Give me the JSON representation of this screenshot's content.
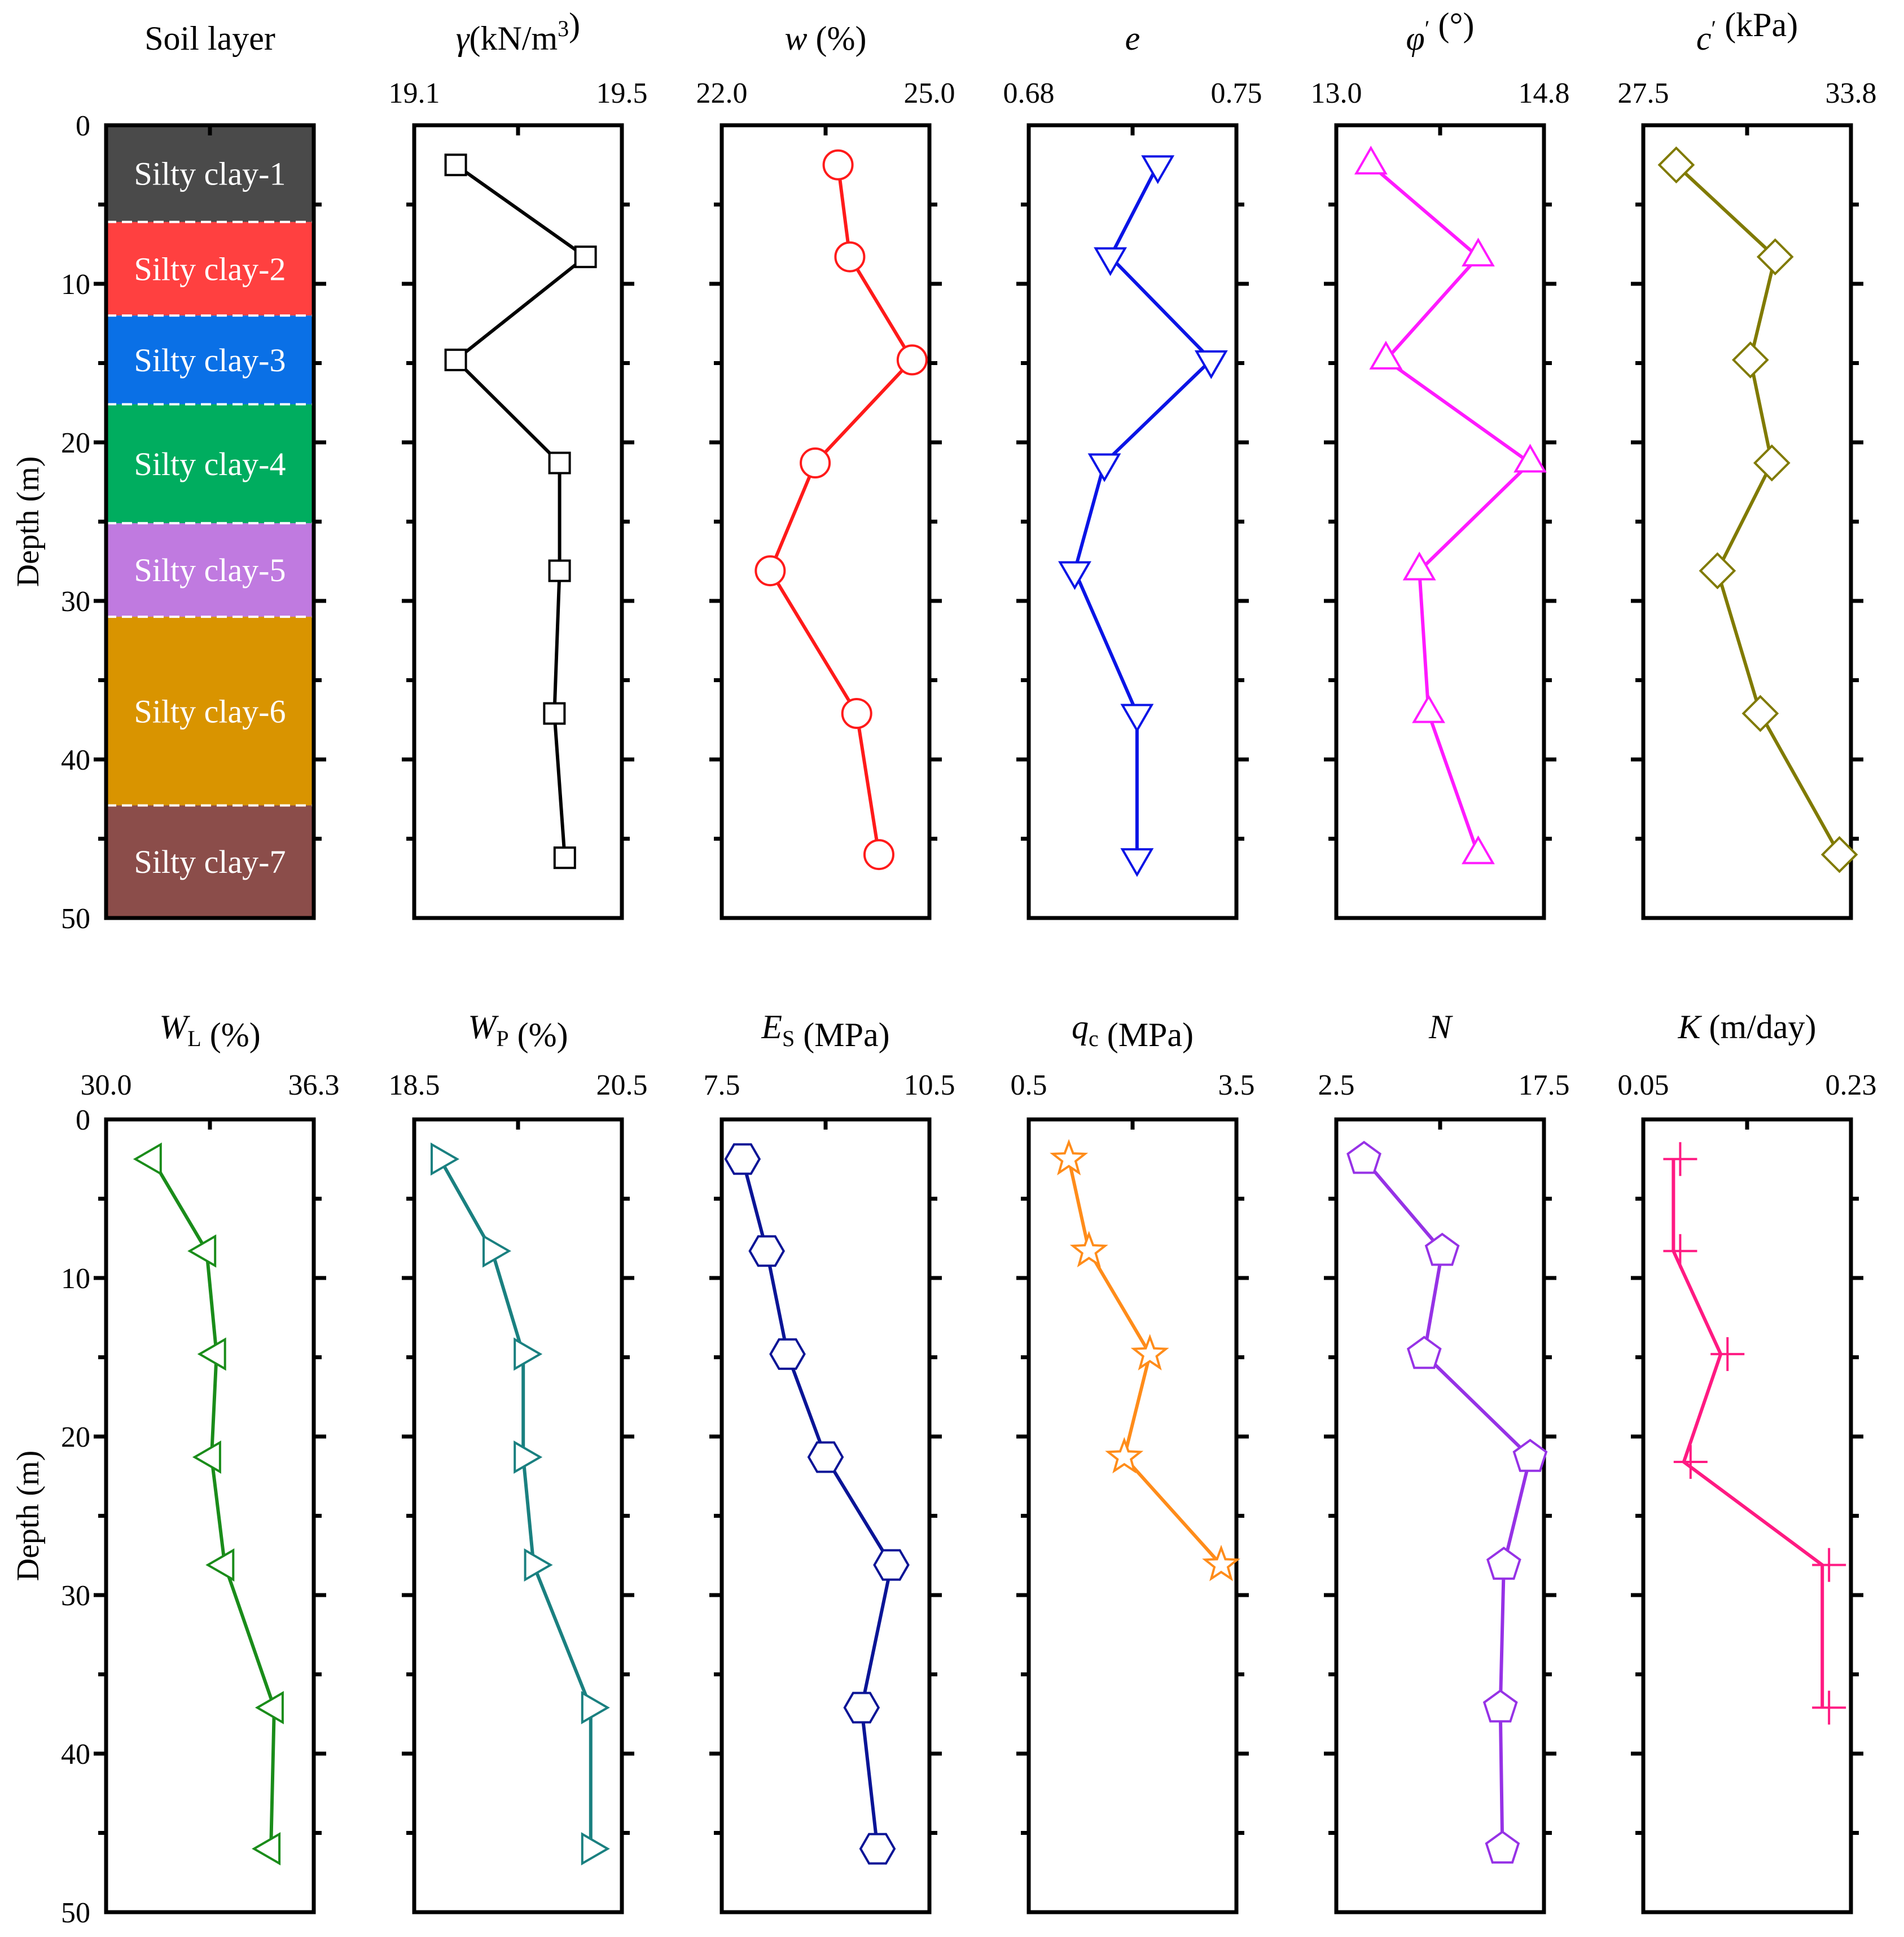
{
  "chart_data": {
    "type": "line",
    "layout": "two rows of depth-profile panels sharing a depth axis",
    "depth_axis": {
      "label": "Depth (m)",
      "range": [
        0,
        50
      ],
      "ticks": [
        0,
        10,
        20,
        30,
        40,
        50
      ],
      "inverted": true
    },
    "soil_column": {
      "title": "Soil layer",
      "layers": [
        {
          "name": "Silty clay-1",
          "top": 0,
          "bottom": 6.1,
          "color": "#4a4a4a"
        },
        {
          "name": "Silty clay-2",
          "top": 6.1,
          "bottom": 12.0,
          "color": "#ff4040"
        },
        {
          "name": "Silty clay-3",
          "top": 12.0,
          "bottom": 17.6,
          "color": "#0a70e6"
        },
        {
          "name": "Silty clay-4",
          "top": 17.6,
          "bottom": 25.1,
          "color": "#00ad5f"
        },
        {
          "name": "Silty clay-5",
          "top": 25.1,
          "bottom": 31.0,
          "color": "#c07ae0"
        },
        {
          "name": "Silty clay-6",
          "top": 31.0,
          "bottom": 42.9,
          "color": "#d99400"
        },
        {
          "name": "Silty clay-7",
          "top": 42.9,
          "bottom": 50,
          "color": "#8b4d4a"
        }
      ]
    },
    "panels": [
      {
        "title_main": "γ",
        "title_rest": "(kN/m",
        "title_sup": "3",
        "title_end": ")",
        "italic_main": true,
        "x_min_label": "19.1",
        "x_max_label": "19.5",
        "xlim": [
          19.1,
          19.5
        ],
        "color": "#000000",
        "marker": "square",
        "depth": [
          2.5,
          8.3,
          14.8,
          21.3,
          28.1,
          37.1,
          46.2
        ],
        "values": [
          19.18,
          19.43,
          19.18,
          19.38,
          19.38,
          19.37,
          19.39
        ]
      },
      {
        "title_main": "w",
        "title_rest": " (%)",
        "italic_main": true,
        "x_min_label": "22.0",
        "x_max_label": "25.0",
        "xlim": [
          22.0,
          25.0
        ],
        "color": "#ff1a1a",
        "marker": "circle",
        "depth": [
          2.5,
          8.3,
          14.8,
          21.3,
          28.1,
          37.1,
          46.0
        ],
        "values": [
          23.68,
          23.85,
          24.75,
          23.35,
          22.7,
          23.95,
          24.27
        ]
      },
      {
        "title_main": "e",
        "italic_main": true,
        "x_min_label": "0.68",
        "x_max_label": "0.75",
        "xlim": [
          0.68,
          0.75
        ],
        "color": "#0a14e6",
        "marker": "triangle-down",
        "depth": [
          2.5,
          8.3,
          14.8,
          21.3,
          28.1,
          37.1,
          46.2
        ],
        "values": [
          0.7235,
          0.7075,
          0.7415,
          0.7055,
          0.6955,
          0.7165,
          0.7165
        ]
      },
      {
        "title_main": "φ",
        "title_prime": "′",
        "title_rest": " (°)",
        "italic_main": true,
        "x_min_label": "13.0",
        "x_max_label": "14.8",
        "xlim": [
          13.0,
          14.8
        ],
        "color": "#ff1aff",
        "marker": "triangle-up",
        "depth": [
          2.5,
          8.3,
          14.8,
          21.3,
          28.1,
          37.1,
          46.0
        ],
        "values": [
          13.3,
          14.23,
          13.43,
          14.68,
          13.72,
          13.8,
          14.23
        ]
      },
      {
        "title_main": "c",
        "title_prime": "′",
        "title_rest": " (kPa)",
        "italic_main": true,
        "x_min_label": "27.5",
        "x_max_label": "33.8",
        "xlim": [
          27.5,
          33.8
        ],
        "color": "#807a00",
        "marker": "diamond",
        "depth": [
          2.5,
          8.3,
          14.8,
          21.3,
          28.1,
          37.1,
          46.0
        ],
        "values": [
          28.5,
          31.5,
          30.75,
          31.4,
          29.75,
          31.05,
          33.45
        ]
      },
      {
        "title_main": "W",
        "title_sub": "L",
        "title_rest": " (%)",
        "italic_main": true,
        "x_min_label": "30.0",
        "x_max_label": "36.3",
        "xlim": [
          30.0,
          36.3
        ],
        "color": "#1a8c1a",
        "marker": "triangle-left",
        "depth": [
          2.5,
          8.3,
          14.8,
          21.3,
          28.1,
          37.1,
          46.0
        ],
        "values": [
          31.4,
          33.05,
          33.35,
          33.2,
          33.6,
          35.1,
          35.0
        ]
      },
      {
        "title_main": "W",
        "title_sub": "P",
        "title_rest": " (%)",
        "italic_main": true,
        "x_min_label": "18.5",
        "x_max_label": "20.5",
        "xlim": [
          18.5,
          20.5
        ],
        "color": "#1a8080",
        "marker": "triangle-right",
        "depth": [
          2.5,
          8.3,
          14.8,
          21.3,
          28.1,
          37.1,
          46.0
        ],
        "values": [
          18.75,
          19.25,
          19.55,
          19.55,
          19.65,
          20.2,
          20.2
        ]
      },
      {
        "title_main": "E",
        "title_sub": "S",
        "title_rest": " (MPa)",
        "italic_main": true,
        "x_min_label": "7.5",
        "x_max_label": "10.5",
        "xlim": [
          7.5,
          10.5
        ],
        "color": "#0a1496",
        "marker": "hexagon",
        "depth": [
          2.5,
          8.3,
          14.8,
          21.3,
          28.1,
          37.1,
          46.0
        ],
        "values": [
          7.8,
          8.15,
          8.45,
          9.0,
          9.95,
          9.52,
          9.75
        ]
      },
      {
        "title_main": "q",
        "title_sub": "c",
        "title_rest": " (MPa)",
        "italic_main": true,
        "x_min_label": "0.5",
        "x_max_label": "3.5",
        "xlim": [
          0.5,
          3.5
        ],
        "color": "#ff8c1a",
        "marker": "star",
        "depth": [
          2.5,
          8.3,
          14.8,
          21.3,
          28.1
        ],
        "values": [
          1.08,
          1.37,
          2.25,
          1.88,
          3.28
        ]
      },
      {
        "title_main": "N",
        "italic_main": true,
        "x_min_label": "2.5",
        "x_max_label": "17.5",
        "xlim": [
          2.5,
          17.5
        ],
        "color": "#9632e6",
        "marker": "pentagon",
        "depth": [
          2.5,
          8.3,
          14.8,
          21.3,
          28.1,
          37.1,
          46.0
        ],
        "values": [
          4.5,
          10.15,
          8.85,
          16.5,
          14.6,
          14.35,
          14.5
        ]
      },
      {
        "title_main": "K",
        "title_rest": " (m/day)",
        "italic_main": true,
        "x_min_label": "0.05",
        "x_max_label": "0.23",
        "xlim": [
          0.05,
          0.23
        ],
        "color": "#ff1a82",
        "marker": "plus",
        "line_style": "step",
        "depth": [
          2.5,
          8.3,
          14.8,
          21.6,
          28.1,
          37.1
        ],
        "values": [
          0.082,
          0.082,
          0.123,
          0.091,
          0.211,
          0.211
        ]
      }
    ]
  }
}
